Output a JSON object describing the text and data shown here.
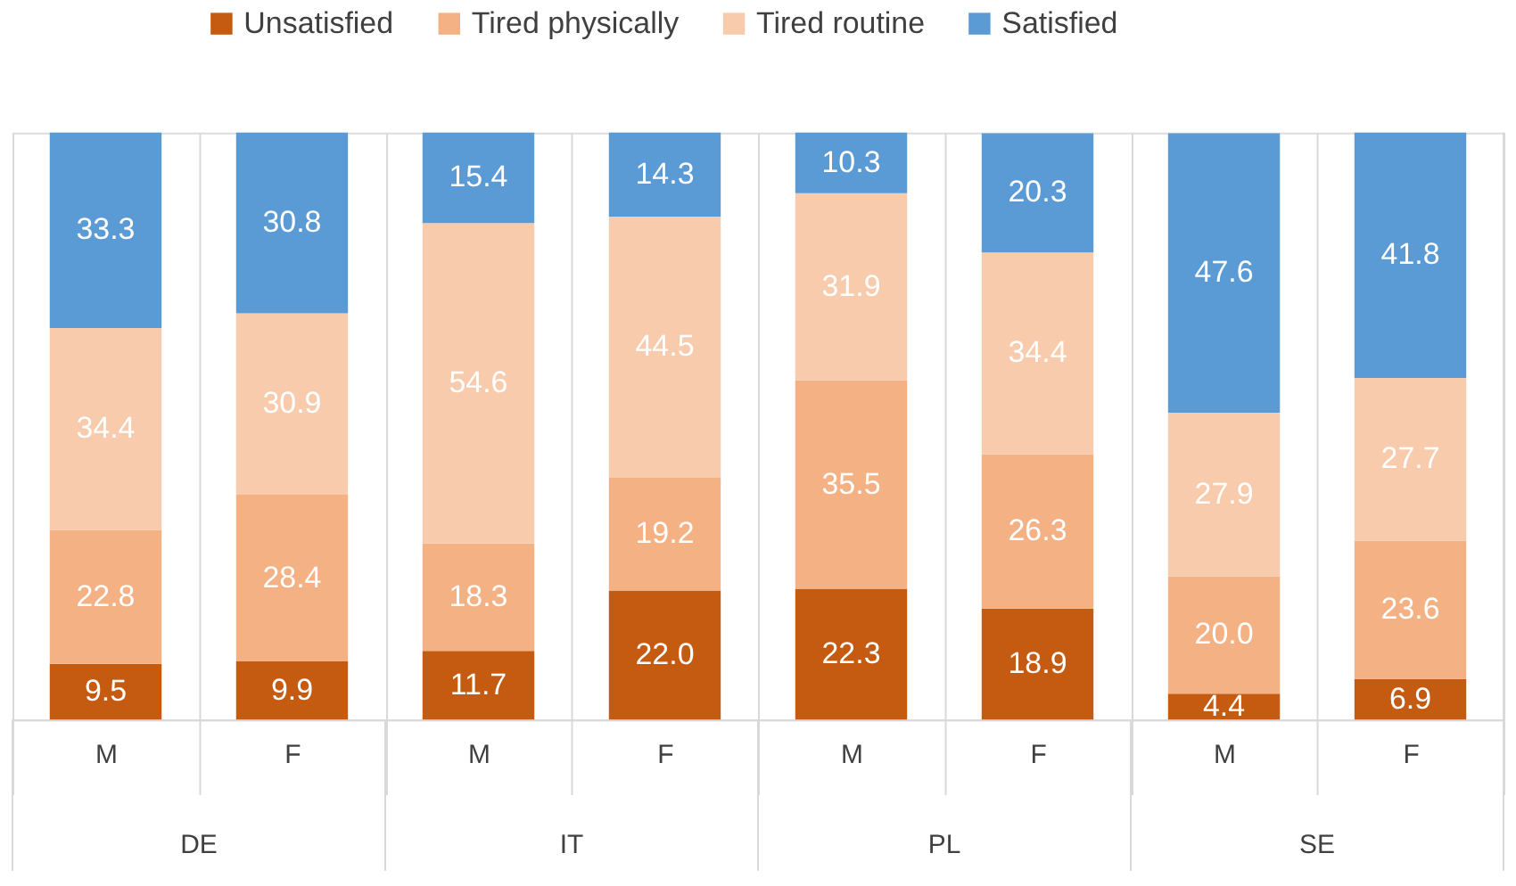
{
  "chart_data": {
    "type": "bar",
    "stacked": true,
    "legend": "top",
    "grid": "x",
    "tick_labels": "x",
    "ylim": [
      0,
      100
    ],
    "categories": [
      "M",
      "F",
      "M",
      "F",
      "M",
      "F",
      "M",
      "F"
    ],
    "annotations": [
      "DE",
      "IT",
      "PL",
      "SE"
    ],
    "series": [
      {
        "name": "Unsatisfied",
        "color": "#c55a11",
        "values": [
          9.5,
          9.9,
          11.7,
          22.0,
          22.3,
          18.9,
          4.4,
          6.9
        ],
        "value_labels": [
          "9.5",
          "9.9",
          "11.7",
          "22.0",
          "22.3",
          "18.9",
          "4.4",
          "6.9"
        ]
      },
      {
        "name": "Tired physically",
        "color": "#f4b183",
        "values": [
          22.8,
          28.4,
          18.3,
          19.2,
          35.5,
          26.3,
          20.0,
          23.6
        ],
        "value_labels": [
          "22.8",
          "28.4",
          "18.3",
          "19.2",
          "35.5",
          "26.3",
          "20.0",
          "23.6"
        ]
      },
      {
        "name": "Tired routine",
        "color": "#f8cbad",
        "values": [
          34.4,
          30.9,
          54.6,
          44.5,
          31.9,
          34.4,
          27.9,
          27.7
        ],
        "value_labels": [
          "34.4",
          "30.9",
          "54.6",
          "44.5",
          "31.9",
          "34.4",
          "27.9",
          "27.7"
        ]
      },
      {
        "name": "Satisfied",
        "color": "#5b9bd5",
        "values": [
          33.3,
          30.8,
          15.4,
          14.3,
          10.3,
          20.3,
          47.6,
          41.8
        ],
        "value_labels": [
          "33.3",
          "30.8",
          "15.4",
          "14.3",
          "10.3",
          "20.3",
          "47.6",
          "41.8"
        ]
      }
    ]
  }
}
